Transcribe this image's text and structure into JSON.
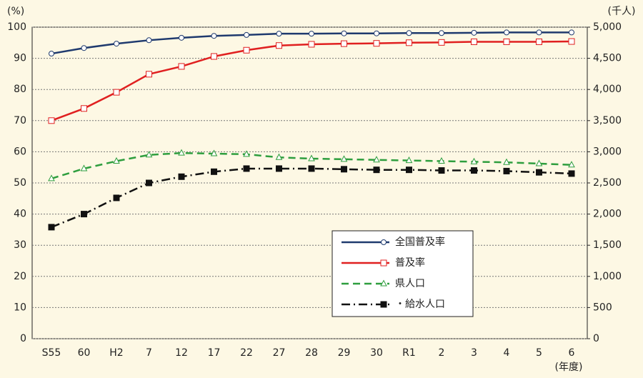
{
  "chart_data": {
    "type": "line",
    "y_label": "(%)",
    "y2_label": "(千人)",
    "x_label": "(年度)",
    "categories": [
      "S55",
      "60",
      "H2",
      "7",
      "12",
      "17",
      "22",
      "27",
      "28",
      "29",
      "30",
      "R1",
      "2",
      "3",
      "4",
      "5",
      "6"
    ],
    "ylim": [
      0,
      100
    ],
    "yticks": [
      0,
      10,
      20,
      30,
      40,
      50,
      60,
      70,
      80,
      90,
      100
    ],
    "y2lim": [
      0,
      5000
    ],
    "y2ticks": [
      0,
      500,
      {
        "value": 1000,
        "label": "1,000"
      },
      {
        "value": 1500,
        "label": "1,500"
      },
      {
        "value": 2000,
        "label": "2,000"
      },
      {
        "value": 2500,
        "label": "2,500"
      },
      {
        "value": 3000,
        "label": "3,000"
      },
      {
        "value": 3500,
        "label": "3,500"
      },
      {
        "value": 4000,
        "label": "4,000"
      },
      {
        "value": 4500,
        "label": "4,500"
      },
      {
        "value": 5000,
        "label": "5,000"
      }
    ],
    "grid": true,
    "series": [
      {
        "name": "全国普及率",
        "color": "#1f3a6e",
        "marker": "circle",
        "dash": "solid",
        "values": [
          91.5,
          93.3,
          94.7,
          95.8,
          96.6,
          97.2,
          97.5,
          97.9,
          97.9,
          98.0,
          98.0,
          98.1,
          98.1,
          98.2,
          98.3,
          98.3,
          98.3
        ]
      },
      {
        "name": "普及率",
        "color": "#e02020",
        "marker": "square",
        "dash": "solid",
        "values": [
          70.0,
          73.9,
          79.1,
          84.9,
          87.4,
          90.6,
          92.6,
          94.1,
          94.5,
          94.7,
          94.8,
          95.0,
          95.1,
          95.3,
          95.3,
          95.3,
          95.4
        ]
      },
      {
        "name": "県人口",
        "color": "#2e9e3e",
        "marker": "triangle",
        "dash": "dashed",
        "axis": "y2",
        "values": [
          2570,
          2730,
          2850,
          2950,
          2980,
          2970,
          2960,
          2910,
          2890,
          2880,
          2870,
          2860,
          2850,
          2840,
          2830,
          2810,
          2790
        ]
      },
      {
        "name": "・給水人口",
        "color": "#111111",
        "marker": "filled-square",
        "dash": "dashdot",
        "axis": "y2",
        "values": [
          1790,
          2000,
          2260,
          2500,
          2600,
          2680,
          2730,
          2730,
          2730,
          2720,
          2710,
          2710,
          2700,
          2700,
          2690,
          2670,
          2650
        ]
      }
    ]
  }
}
